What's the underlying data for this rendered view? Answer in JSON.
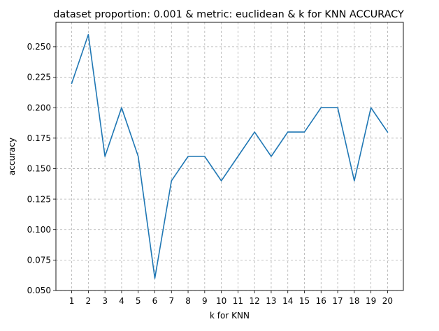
{
  "chart_data": {
    "type": "line",
    "title": "dataset proportion: 0.001 & metric: euclidean & k for KNN ACCURACY",
    "xlabel": "k for KNN",
    "ylabel": "accuracy",
    "x": [
      1,
      2,
      3,
      4,
      5,
      6,
      7,
      8,
      9,
      10,
      11,
      12,
      13,
      14,
      15,
      16,
      17,
      18,
      19,
      20
    ],
    "series": [
      {
        "values": [
          0.22,
          0.26,
          0.16,
          0.2,
          0.16,
          0.06,
          0.14,
          0.16,
          0.16,
          0.14,
          0.16,
          0.18,
          0.16,
          0.18,
          0.18,
          0.2,
          0.2,
          0.14,
          0.2,
          0.18
        ],
        "color": "#1f77b4"
      }
    ],
    "xlim": [
      0.05,
      20.95
    ],
    "ylim": [
      0.05,
      0.27
    ],
    "xticks": [
      "1",
      "2",
      "3",
      "4",
      "5",
      "6",
      "7",
      "8",
      "9",
      "10",
      "11",
      "12",
      "13",
      "14",
      "15",
      "16",
      "17",
      "18",
      "19",
      "20"
    ],
    "yticks": [
      "0.050",
      "0.075",
      "0.100",
      "0.125",
      "0.150",
      "0.175",
      "0.200",
      "0.225",
      "0.250"
    ],
    "grid": true,
    "legend": false
  }
}
